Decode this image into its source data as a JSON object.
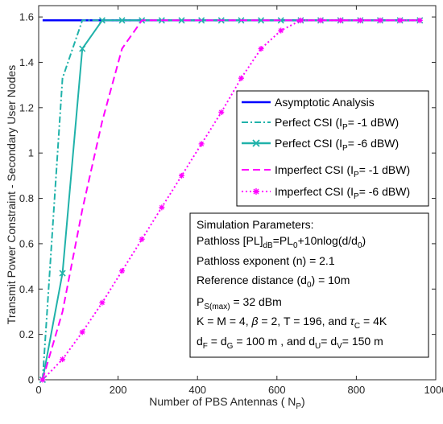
{
  "chart_data": {
    "type": "line",
    "xlabel": "Number of PBS Antennas ( N",
    "xlabel_sub": "P",
    "xlabel_end": ")",
    "ylabel": "Transmit Power Constraint - Secondary User Nodes",
    "xlim": [
      0,
      1000
    ],
    "ylim": [
      0,
      1.65
    ],
    "xticks": [
      "0",
      "200",
      "400",
      "600",
      "800",
      "1000"
    ],
    "yticks": [
      "0",
      "0.2",
      "0.4",
      "0.6",
      "0.8",
      "1",
      "1.2",
      "1.4",
      "1.6"
    ],
    "grid": false,
    "legend_position": "right-middle",
    "series": [
      {
        "name": "Asymptotic Analysis",
        "legend_main": "Asymptotic Analysis",
        "legend_sub": "",
        "legend_end": "",
        "color": "#0000ff",
        "dash": "",
        "marker": "none",
        "x": [
          10,
          960
        ],
        "y": [
          1.585,
          1.585
        ]
      },
      {
        "name": "Perfect CSI (IP= -1 dBW)",
        "legend_main": "Perfect CSI (I",
        "legend_sub": "P",
        "legend_end": "= -1 dBW)",
        "color": "#20b2aa",
        "dash": "8,3,2,3",
        "marker": "none",
        "x": [
          10,
          60,
          110,
          160,
          210,
          260,
          310,
          360,
          410,
          460,
          510,
          560,
          610,
          660,
          710,
          760,
          810,
          860,
          910,
          960
        ],
        "y": [
          0,
          1.33,
          1.585,
          1.585,
          1.585,
          1.585,
          1.585,
          1.585,
          1.585,
          1.585,
          1.585,
          1.585,
          1.585,
          1.585,
          1.585,
          1.585,
          1.585,
          1.585,
          1.585,
          1.585
        ]
      },
      {
        "name": "Perfect CSI (IP= -6 dBW)",
        "legend_main": "Perfect CSI (I",
        "legend_sub": "P",
        "legend_end": "= -6 dBW)",
        "color": "#20b2aa",
        "dash": "",
        "marker": "x",
        "x": [
          10,
          60,
          110,
          160,
          210,
          260,
          310,
          360,
          410,
          460,
          510,
          560,
          610,
          660,
          710,
          760,
          810,
          860,
          910,
          960
        ],
        "y": [
          0,
          0.47,
          1.46,
          1.585,
          1.585,
          1.585,
          1.585,
          1.585,
          1.585,
          1.585,
          1.585,
          1.585,
          1.585,
          1.585,
          1.585,
          1.585,
          1.585,
          1.585,
          1.585,
          1.585
        ]
      },
      {
        "name": "Imperfect CSI (IP= -1 dBW)",
        "legend_main": "Imperfect CSI (I",
        "legend_sub": "P",
        "legend_end": "= -1 dBW)",
        "color": "#ff00ff",
        "dash": "9,5",
        "marker": "none",
        "x": [
          10,
          60,
          110,
          160,
          210,
          260,
          310,
          360,
          410,
          460,
          510,
          560,
          610,
          660,
          710,
          760,
          810,
          860,
          910,
          960
        ],
        "y": [
          0,
          0.3,
          0.75,
          1.14,
          1.46,
          1.585,
          1.585,
          1.585,
          1.585,
          1.585,
          1.585,
          1.585,
          1.585,
          1.585,
          1.585,
          1.585,
          1.585,
          1.585,
          1.585,
          1.585
        ]
      },
      {
        "name": "Imperfect CSI (IP= -6 dBW)",
        "legend_main": "Imperfect CSI (I",
        "legend_sub": "P",
        "legend_end": "= -6 dBW)",
        "color": "#ff00ff",
        "dash": "2,3",
        "marker": "star",
        "x": [
          10,
          60,
          110,
          160,
          210,
          260,
          310,
          360,
          410,
          460,
          510,
          560,
          610,
          660,
          710,
          760,
          810,
          860,
          910,
          960
        ],
        "y": [
          0,
          0.09,
          0.21,
          0.34,
          0.48,
          0.62,
          0.76,
          0.9,
          1.04,
          1.18,
          1.33,
          1.46,
          1.54,
          1.585,
          1.585,
          1.585,
          1.585,
          1.585,
          1.585,
          1.585
        ]
      }
    ],
    "annotation": {
      "title": "Simulation Parameters:",
      "pathloss": {
        "a": "Pathloss [PL]",
        "a_sub": "dB",
        "b": "=PL",
        "b_sub": "0",
        "c": "+10nlog(d/d",
        "c_sub": "0",
        "d": ")"
      },
      "exponent": "Pathloss exponent (n) = 2.1",
      "refdist": {
        "a": "Reference distance (d",
        "a_sub": "0",
        "b": ") = 10m"
      },
      "pmax": {
        "a": "P",
        "a_sub": "S(max)",
        "b": " = 32 dBm"
      },
      "params": {
        "a": "K = M = 4, ",
        "beta": "β",
        "b": " = 2, T = 196, and ",
        "tau": "τ",
        "tau_sub": "C",
        "c": " = 4K"
      },
      "dist": {
        "a": "d",
        "a_sub": "F",
        "b": " = d",
        "b_sub": "G",
        "c": " = 100 m , and  d",
        "c_sub": "U",
        "d": "= d",
        "d_sub": "V",
        "e": "= 150 m"
      }
    }
  }
}
